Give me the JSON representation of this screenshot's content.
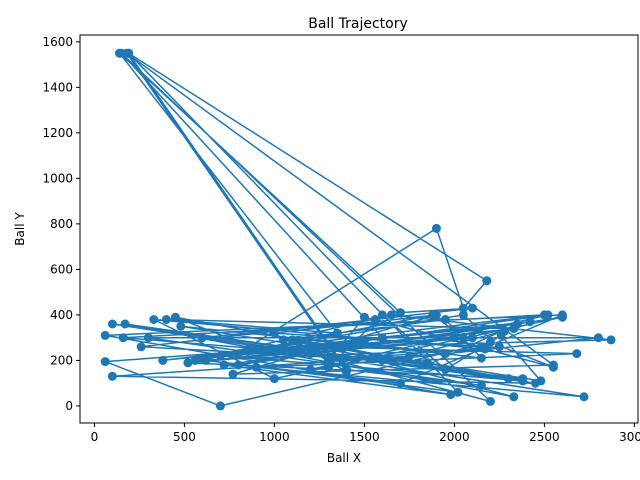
{
  "chart_data": {
    "type": "line",
    "title": "Ball Trajectory",
    "xlabel": "Ball X",
    "ylabel": "Ball Y",
    "xlim": [
      -80,
      3020
    ],
    "ylim": [
      -75,
      1630
    ],
    "x_ticks": [
      0,
      500,
      1000,
      1500,
      2000,
      2500,
      3000
    ],
    "y_ticks": [
      0,
      200,
      400,
      600,
      800,
      1000,
      1200,
      1400,
      1600
    ],
    "grid": false,
    "legend": "none",
    "marker": "circle",
    "color": "#1f77b4",
    "series": [
      {
        "x": [
          140,
          190,
          2180,
          2050,
          1900,
          800,
          1500,
          60,
          700,
          2200,
          2550,
          1560,
          600,
          2450,
          100,
          1950,
          480,
          2300,
          170,
          2330,
          1280,
          2680,
          900,
          2720,
          100,
          1600,
          2800,
          300,
          2150,
          1400,
          190,
          2020,
          620,
          1700,
          2600,
          60,
          1980,
          720,
          2420,
          380,
          2500,
          160,
          1850,
          260,
          2100,
          1700,
          140,
          1350,
          400,
          2330,
          520,
          1880,
          2050,
          1200,
          2200,
          150,
          1600,
          800,
          2600,
          1000,
          330,
          2170,
          560,
          1650,
          2870,
          900,
          450,
          2380,
          700,
          2350,
          1850,
          1100,
          1400,
          180,
          2550,
          770,
          1900,
          1000,
          2150,
          1500,
          1300,
          2250,
          2050,
          850,
          2100,
          520,
          2380,
          1100,
          2000,
          600,
          2280,
          1750,
          1200,
          2520,
          1450,
          2150,
          1950,
          1050,
          2480,
          2260,
          1950,
          1600,
          1300
        ],
        "y": [
          1550,
          1550,
          550,
          430,
          780,
          230,
          280,
          195,
          0,
          280,
          170,
          380,
          300,
          100,
          130,
          230,
          350,
          120,
          360,
          40,
          260,
          230,
          170,
          40,
          360,
          200,
          300,
          300,
          90,
          160,
          1550,
          60,
          200,
          100,
          400,
          310,
          50,
          180,
          370,
          200,
          400,
          300,
          190,
          260,
          430,
          410,
          1550,
          320,
          380,
          340,
          190,
          400,
          300,
          230,
          20,
          1550,
          300,
          180,
          390,
          120,
          380,
          250,
          200,
          400,
          290,
          250,
          390,
          110,
          220,
          360,
          180,
          290,
          150,
          1550,
          180,
          140,
          400,
          320,
          260,
          390,
          200,
          260,
          400,
          240,
          300,
          190,
          120,
          240,
          300,
          210,
          330,
          220,
          160,
          400,
          280,
          210,
          380,
          290,
          110,
          310,
          160,
          400,
          170
        ]
      }
    ]
  }
}
